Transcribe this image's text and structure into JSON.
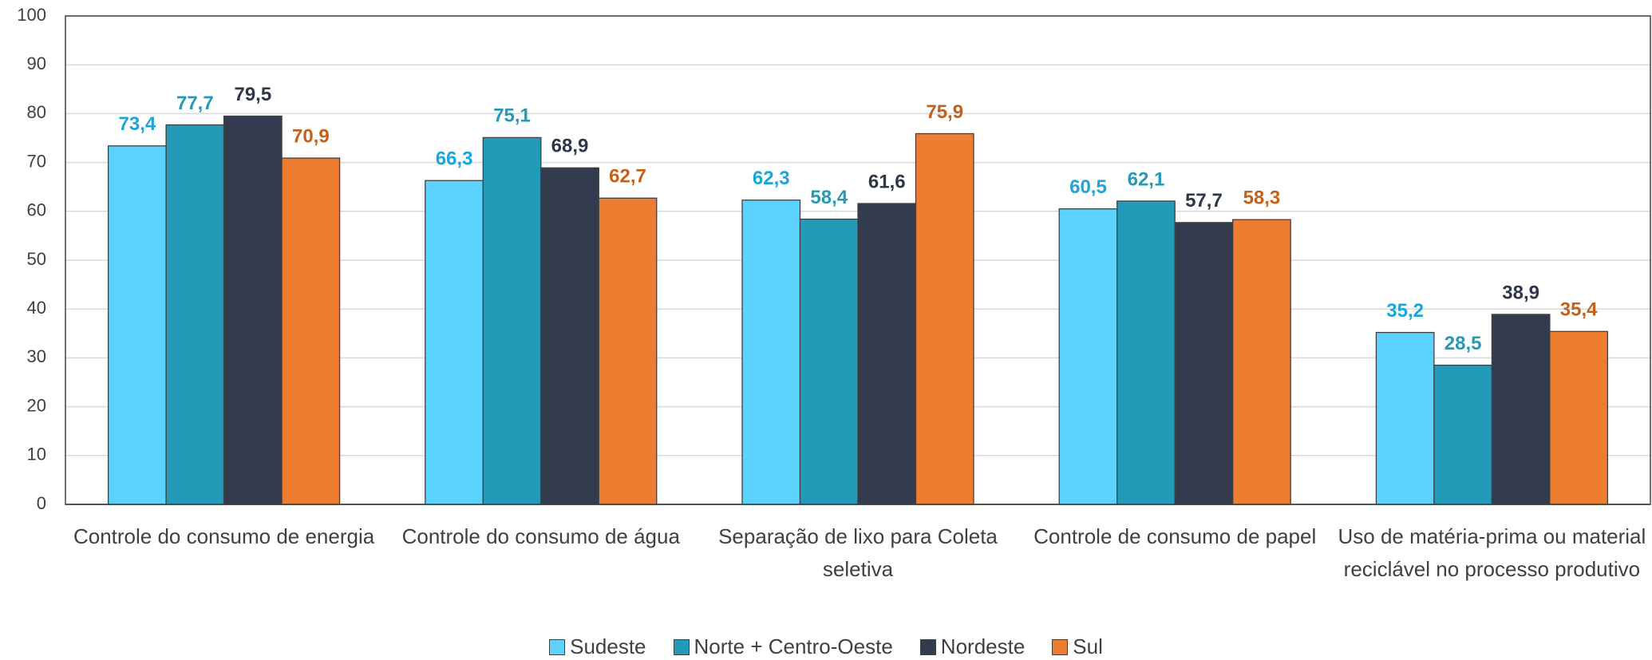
{
  "chart_data": {
    "type": "bar",
    "categories": [
      "Controle do consumo de energia",
      "Controle do consumo de água",
      "Separação de lixo para Coleta seletiva",
      "Controle de consumo de papel",
      "Uso de matéria-prima ou material reciclável no processo produtivo"
    ],
    "series": [
      {
        "name": "Sudeste",
        "color": "#5bd3fe",
        "label_color": "#1ba6d9",
        "values": [
          73.4,
          66.3,
          62.3,
          60.5,
          35.2
        ],
        "value_labels": [
          "73,4",
          "66,3",
          "62,3",
          "60,5",
          "35,2"
        ]
      },
      {
        "name": "Norte + Centro-Oeste",
        "color": "#239bb8",
        "label_color": "#2799b5",
        "values": [
          77.7,
          75.1,
          58.4,
          62.1,
          28.5
        ],
        "value_labels": [
          "77,7",
          "75,1",
          "58,4",
          "62,1",
          "28,5"
        ]
      },
      {
        "name": "Nordeste",
        "color": "#323c4e",
        "label_color": "#2d3748",
        "values": [
          79.5,
          68.9,
          61.6,
          57.7,
          38.9
        ],
        "value_labels": [
          "79,5",
          "68,9",
          "61,6",
          "57,7",
          "38,9"
        ]
      },
      {
        "name": "Sul",
        "color": "#ed7d31",
        "label_color": "#c5601a",
        "values": [
          70.9,
          62.7,
          75.9,
          58.3,
          35.4
        ],
        "value_labels": [
          "70,9",
          "62,7",
          "75,9",
          "58,3",
          "35,4"
        ]
      }
    ],
    "ylim": [
      0,
      100
    ],
    "yticks": [
      0,
      10,
      20,
      30,
      40,
      50,
      60,
      70,
      80,
      90,
      100
    ],
    "grid": true,
    "legend": "bottom"
  }
}
